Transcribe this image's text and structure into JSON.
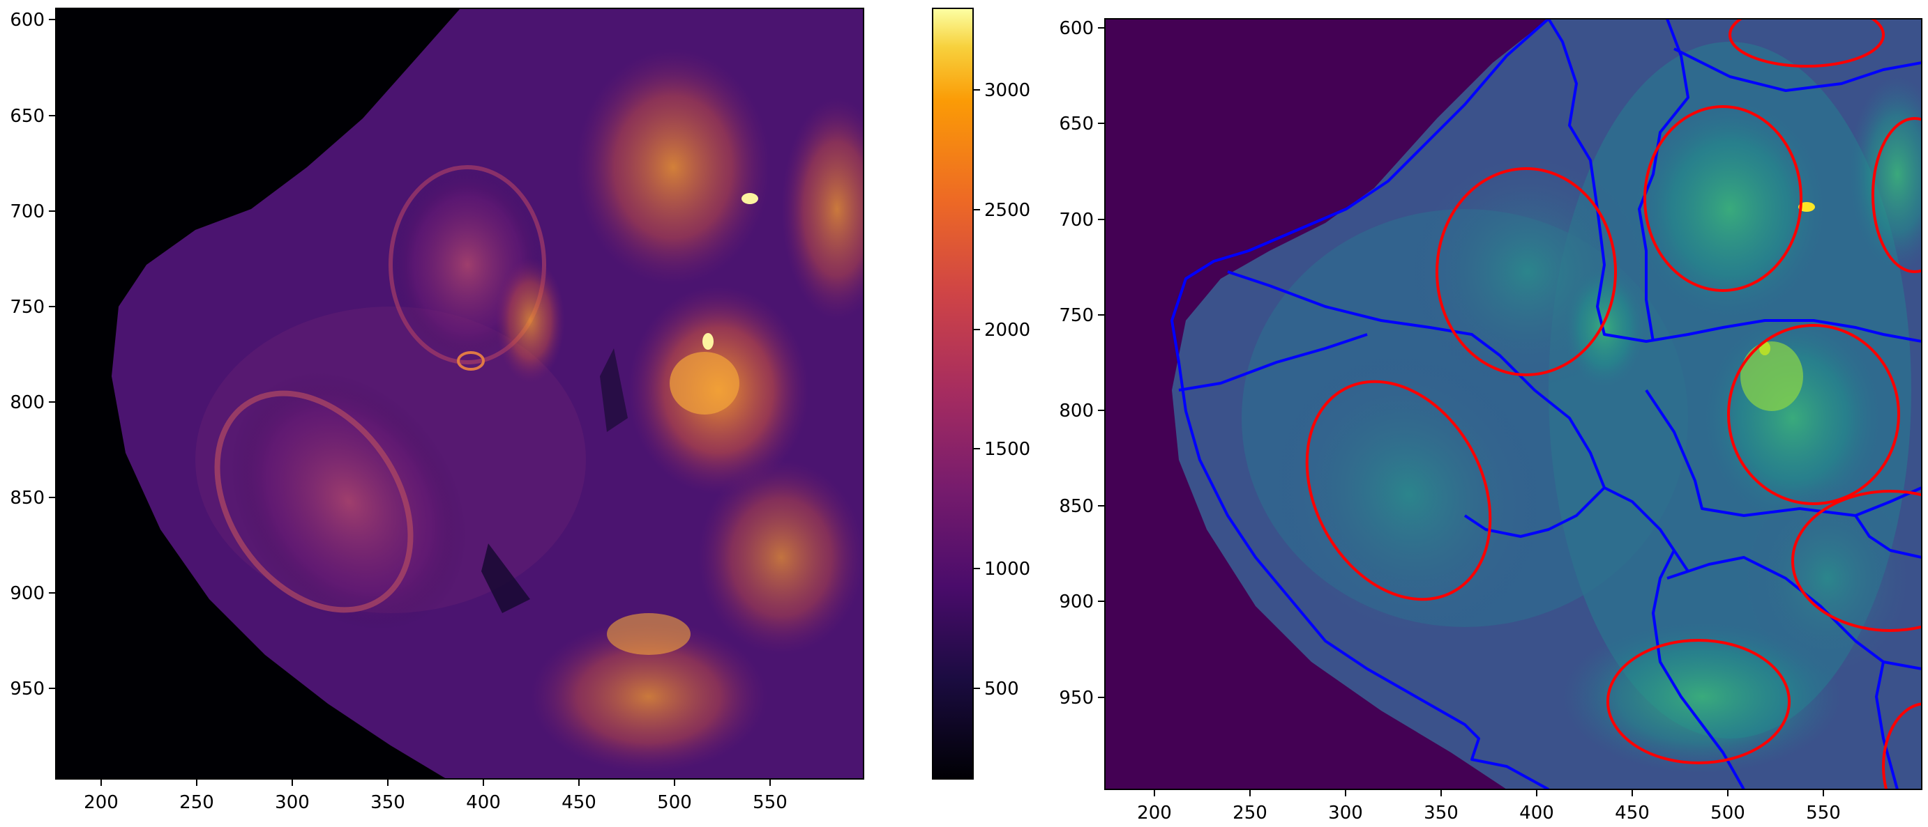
{
  "left_panel": {
    "x_ticks": [
      "200",
      "250",
      "300",
      "350",
      "400",
      "450",
      "500",
      "550"
    ],
    "y_ticks": [
      "600",
      "650",
      "700",
      "750",
      "800",
      "850",
      "900",
      "950"
    ],
    "colormap": "inferno"
  },
  "colorbar": {
    "ticks": [
      "500",
      "1000",
      "1500",
      "2000",
      "2500",
      "3000"
    ],
    "colormap": "inferno"
  },
  "right_panel": {
    "x_ticks": [
      "200",
      "250",
      "300",
      "350",
      "400",
      "450",
      "500",
      "550"
    ],
    "y_ticks": [
      "600",
      "650",
      "700",
      "750",
      "800",
      "850",
      "900",
      "950"
    ],
    "colormap": "viridis",
    "overlay": {
      "cell_boundary_color": "#0000ff",
      "nucleus_boundary_color": "#ff0000"
    }
  }
}
